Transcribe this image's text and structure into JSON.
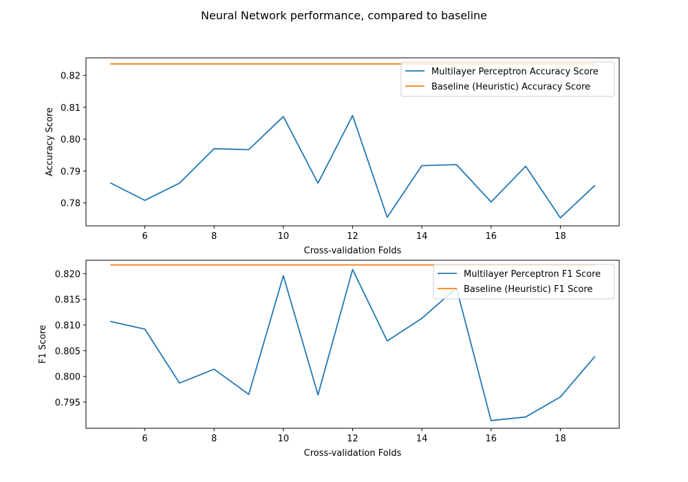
{
  "figure_title": "Neural Network performance, compared to baseline",
  "chart_data": [
    {
      "type": "line",
      "title": "",
      "xlabel": "Cross-validation Folds",
      "ylabel": "Accuracy Score",
      "x": [
        5,
        6,
        7,
        8,
        9,
        10,
        11,
        12,
        13,
        14,
        15,
        16,
        17,
        18,
        19
      ],
      "xlim": [
        4.3,
        19.7
      ],
      "ylim": [
        0.7728,
        0.8255
      ],
      "xticks": [
        6,
        8,
        10,
        12,
        14,
        16,
        18
      ],
      "yticks": [
        0.78,
        0.79,
        0.8,
        0.81,
        0.82
      ],
      "ytick_decimals": 2,
      "grid": false,
      "legend_position": "upper right",
      "series": [
        {
          "name": "Multilayer Perceptron Accuracy Score",
          "color": "#1f77b4",
          "values": [
            0.7863,
            0.7808,
            0.7862,
            0.797,
            0.7967,
            0.8071,
            0.7862,
            0.8074,
            0.7755,
            0.7917,
            0.792,
            0.7803,
            0.7915,
            0.7753,
            0.7855
          ]
        },
        {
          "name": "Baseline (Heuristic) Accuracy Score",
          "color": "#ff7f0e",
          "values": [
            0.8236,
            0.8236,
            0.8236,
            0.8236,
            0.8236,
            0.8236,
            0.8236,
            0.8236,
            0.8236,
            0.8236,
            0.8236,
            0.8236,
            0.8236,
            0.8236,
            0.8236
          ]
        }
      ]
    },
    {
      "type": "line",
      "title": "",
      "xlabel": "Cross-validation Folds",
      "ylabel": "F1 Score",
      "x": [
        5,
        6,
        7,
        8,
        9,
        10,
        11,
        12,
        13,
        14,
        15,
        16,
        17,
        18,
        19
      ],
      "xlim": [
        4.3,
        19.7
      ],
      "ylim": [
        0.7899,
        0.8226
      ],
      "xticks": [
        6,
        8,
        10,
        12,
        14,
        16,
        18
      ],
      "yticks": [
        0.795,
        0.8,
        0.805,
        0.81,
        0.815,
        0.82
      ],
      "ytick_decimals": 3,
      "grid": false,
      "legend_position": "upper right",
      "series": [
        {
          "name": "Multilayer Perceptron F1 Score",
          "color": "#1f77b4",
          "values": [
            0.8107,
            0.8092,
            0.7987,
            0.8014,
            0.7965,
            0.8196,
            0.7964,
            0.8208,
            0.8069,
            0.8113,
            0.8172,
            0.7914,
            0.7921,
            0.796,
            0.8039
          ]
        },
        {
          "name": "Baseline (Heuristic) F1 Score",
          "color": "#ff7f0e",
          "values": [
            0.8217,
            0.8217,
            0.8217,
            0.8217,
            0.8217,
            0.8217,
            0.8217,
            0.8217,
            0.8217,
            0.8217,
            0.8217,
            0.8217,
            0.8217,
            0.8217,
            0.8217
          ]
        }
      ]
    }
  ]
}
